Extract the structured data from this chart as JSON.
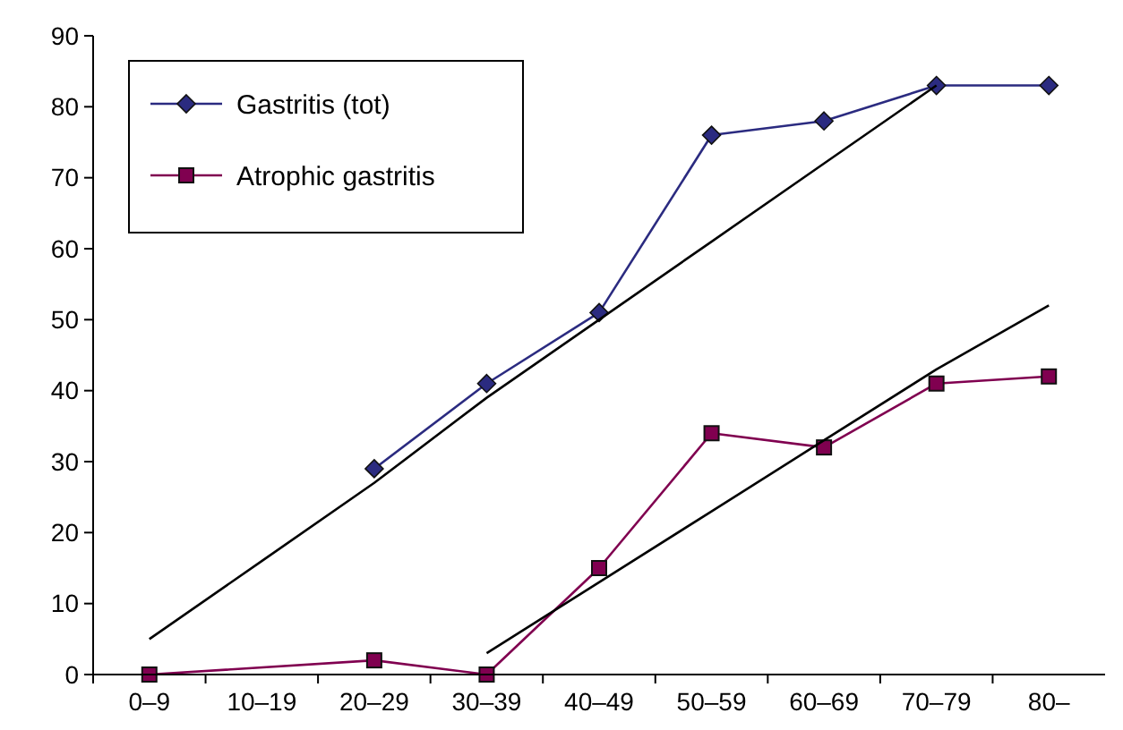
{
  "chart_data": {
    "type": "line",
    "categories": [
      "0–9",
      "10–19",
      "20–29",
      "30–39",
      "40–49",
      "50–59",
      "60–69",
      "70–79",
      "80–"
    ],
    "series": [
      {
        "name": "Gastritis (tot)",
        "color": "#2b2b80",
        "marker": "diamond",
        "values": [
          null,
          null,
          29,
          41,
          51,
          76,
          78,
          83,
          83
        ]
      },
      {
        "name": "Atrophic gastritis",
        "color": "#800050",
        "marker": "square",
        "values": [
          0,
          null,
          2,
          0,
          15,
          34,
          32,
          41,
          42
        ]
      },
      {
        "color": "#000000",
        "marker": "none",
        "values": [
          5,
          16,
          27,
          39,
          50,
          61,
          72,
          83,
          null
        ]
      },
      {
        "color": "#000000",
        "marker": "none",
        "values": [
          null,
          null,
          null,
          3,
          13,
          23,
          33,
          43,
          52
        ]
      }
    ],
    "ylim": [
      0,
      90
    ],
    "yticks": [
      0,
      10,
      20,
      30,
      40,
      50,
      60,
      70,
      80,
      90
    ],
    "grid": false,
    "legend": "top left"
  }
}
